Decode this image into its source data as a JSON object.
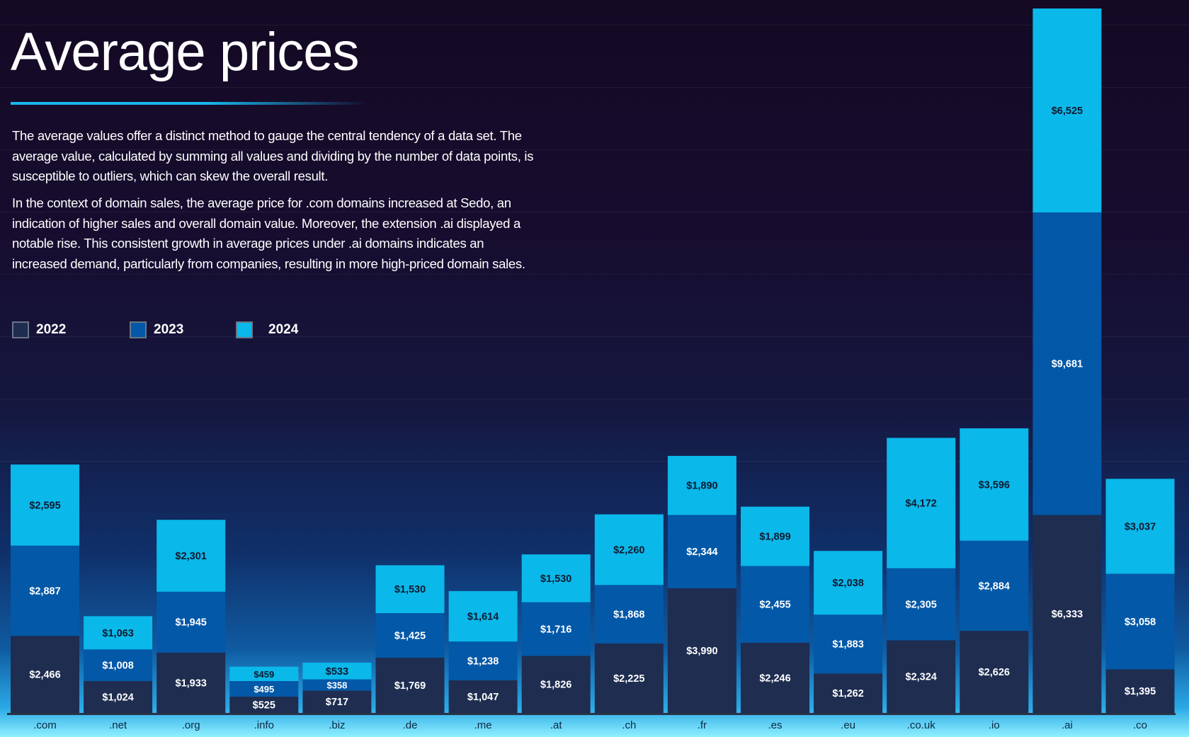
{
  "header": {
    "title": "Average prices",
    "paragraphs": [
      "The average values offer a distinct method to gauge the central tendency of a data set. The average value, calculated by summing all values and dividing by the number of data points, is susceptible to outliers, which can skew the overall result.",
      "In the context of domain sales, the average price for .com domains increased at Sedo, an indication of higher sales and overall domain value. Moreover, the extension .ai displayed a notable rise. This consistent growth in average prices under .ai domains indicates an increased demand, particularly from companies, resulting in more high-priced domain sales."
    ]
  },
  "chart_data": {
    "type": "bar",
    "stacked": true,
    "title": "",
    "xlabel": "",
    "ylabel": "",
    "legend_position": "top-left",
    "categories": [
      ".com",
      ".net",
      ".org",
      ".info",
      ".biz",
      ".de",
      ".me",
      ".at",
      ".ch",
      ".fr",
      ".es",
      ".eu",
      ".co.uk",
      ".io",
      ".ai",
      ".co"
    ],
    "series": [
      {
        "name": "2022",
        "color": "#1e2d50",
        "label_color": "#ffffff",
        "values": [
          2466,
          1024,
          1933,
          525,
          717,
          1769,
          1047,
          1826,
          2225,
          3990,
          2246,
          1262,
          2324,
          2626,
          6333,
          1395
        ]
      },
      {
        "name": "2023",
        "color": "#0358a7",
        "label_color": "#ffffff",
        "values": [
          2887,
          1008,
          1945,
          495,
          358,
          1425,
          1238,
          1716,
          1868,
          2344,
          2455,
          1883,
          2305,
          2884,
          9681,
          3058
        ]
      },
      {
        "name": "2024",
        "color": "#0bb8ea",
        "label_color": "#0d1a30",
        "values": [
          2595,
          1063,
          2301,
          459,
          533,
          1530,
          1614,
          1530,
          2260,
          1890,
          1899,
          2038,
          4172,
          3596,
          6525,
          3037
        ]
      }
    ]
  }
}
